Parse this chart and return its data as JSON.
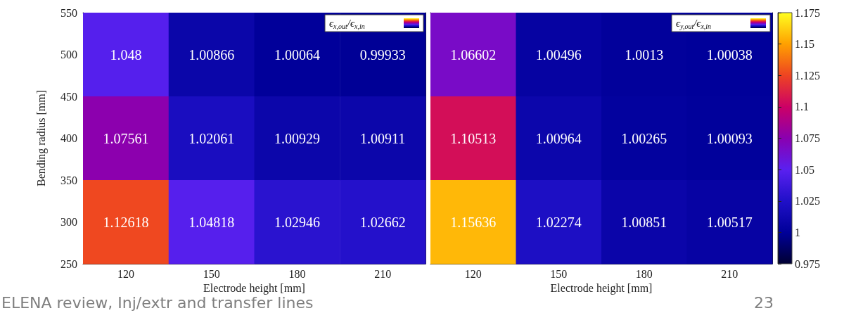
{
  "chart_data": [
    {
      "type": "heatmap",
      "categories": [
        "120",
        "150",
        "180",
        "210"
      ],
      "xlabel": "Electrode height [mm]",
      "ylabel": "Bending radius [mm]",
      "ylim": [
        250,
        550
      ],
      "yticks": [
        250,
        300,
        350,
        400,
        450,
        500,
        550
      ],
      "clabel": "ϵ$_{x,out}$/ϵ$_{x,in}$",
      "data_labels": true,
      "cells": [
        [
          1.048,
          1.00866,
          1.00064,
          0.99933
        ],
        [
          1.07561,
          1.02061,
          1.00929,
          1.00911
        ],
        [
          1.12618,
          1.04818,
          1.02946,
          1.02662
        ]
      ],
      "annotations": [
        "ELENA review, Inj/extr and transfer lines"
      ]
    },
    {
      "type": "heatmap",
      "categories": [
        "120",
        "150",
        "180",
        "210"
      ],
      "xlabel": "Electrode height [mm]",
      "ylim": [
        250,
        550
      ],
      "yticks": [
        250,
        300,
        350,
        400,
        450,
        500,
        550
      ],
      "tick_labels": "x",
      "clabel": "ϵ$_{y,out}$/ϵ$_{x,in}$",
      "data_labels": true,
      "clim": [
        0.975,
        1.175
      ],
      "cticks": [
        0.975,
        1,
        1.025,
        1.05,
        1.075,
        1.1,
        1.125,
        1.15,
        1.175
      ],
      "cells": [
        [
          1.06602,
          1.00496,
          1.0013,
          1.00038
        ],
        [
          1.10513,
          1.00964,
          1.00265,
          1.00093
        ],
        [
          1.15636,
          1.02274,
          1.00851,
          1.00517
        ]
      ],
      "annotations": [
        "23"
      ]
    }
  ]
}
